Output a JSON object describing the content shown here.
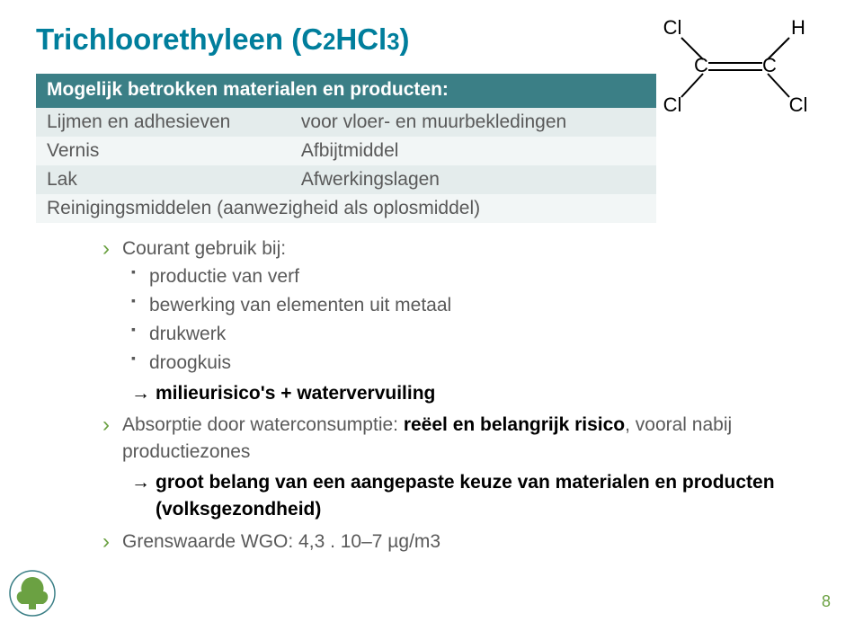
{
  "colors": {
    "title": "#007e9c",
    "header_bg": "#3b7f86",
    "header_text": "#ffffff",
    "row_odd": "#e4ecec",
    "row_even": "#f2f6f6",
    "body_text": "#595959",
    "bullet": "#6ba142",
    "arrow_bold": "#000000",
    "pagenum": "#6ba142",
    "tree_fill": "#6ba142",
    "tree_stroke": "#3b7f86"
  },
  "title": {
    "prefix": "Trichloorethyleen (C",
    "sub1": "2",
    "mid": "HCl",
    "sub2": "3",
    "suffix": ")"
  },
  "molecule": {
    "labels": {
      "tl": "Cl",
      "tr": "H",
      "bl": "Cl",
      "br": "Cl",
      "cl": "C",
      "cr": "C"
    },
    "stroke": "#000000",
    "font": "22"
  },
  "table": {
    "header": "Mogelijk betrokken materialen en producten:",
    "rows": [
      {
        "c1": "Lijmen en adhesieven",
        "c2": "voor vloer- en muurbekledingen"
      },
      {
        "c1": "Vernis",
        "c2": "Afbijtmiddel"
      },
      {
        "c1": "Lak",
        "c2": "Afwerkingslagen"
      },
      {
        "span": "Reinigingsmiddelen (aanwezigheid als oplosmiddel)"
      }
    ]
  },
  "bullets": {
    "item1_intro": "Courant gebruik bij:",
    "sub1": "productie van verf",
    "sub2": "bewerking van elementen uit metaal",
    "sub3": "drukwerk",
    "sub4": "droogkuis",
    "arrow1": "milieurisico's + watervervuiling",
    "item2a": "Absorptie door waterconsumptie: ",
    "item2b": "reëel en belangrijk risico",
    "item2c": ", vooral nabij productiezones",
    "arrow2a": "groot belang van een ",
    "arrow2b": "aangepaste keuze van materialen en producten",
    "arrow2c": " (volksgezondheid)",
    "item3": "Grenswaarde WGO: 4,3 . 10–7 µg/m3"
  },
  "pagenum": "8"
}
